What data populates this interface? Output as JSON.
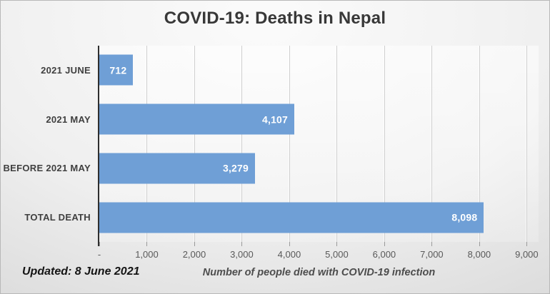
{
  "title": "COVID-19: Deaths in Nepal",
  "footer": {
    "updated_label": "Updated: 8 June 2021",
    "axis_title": "Number of people died with COVID-19 infection"
  },
  "colors": {
    "bar": "#6f9fd6",
    "bar_value_label": "#ffffff",
    "axis_line": "#2e2e2e",
    "gridline": "#cfcfcf",
    "category_label": "#3f3f3f",
    "tick_label": "#595959",
    "title_text": "#383838",
    "background_light": "#fbfbfb",
    "background_dark": "#d2d2d2"
  },
  "chart_data": {
    "type": "bar",
    "orientation": "horizontal",
    "title": "COVID-19: Deaths in Nepal",
    "xlabel": "Number of people died with COVID-19 infection",
    "ylabel": "",
    "categories": [
      "2021 JUNE",
      "2021 MAY",
      "BEFORE 2021 MAY",
      "TOTAL DEATH"
    ],
    "values": [
      712,
      4107,
      3279,
      8098
    ],
    "value_labels": [
      "712",
      "4,107",
      "3,279",
      "8,098"
    ],
    "xlim": [
      0,
      9250
    ],
    "xticks": [
      0,
      1000,
      2000,
      3000,
      4000,
      5000,
      6000,
      7000,
      8000,
      9000
    ],
    "xtick_labels": [
      "-",
      "1,000",
      "2,000",
      "3,000",
      "4,000",
      "5,000",
      "6,000",
      "7,000",
      "8,000",
      "9,000"
    ],
    "grid": true,
    "legend": false,
    "annotations": [
      "Updated: 8 June 2021"
    ]
  }
}
